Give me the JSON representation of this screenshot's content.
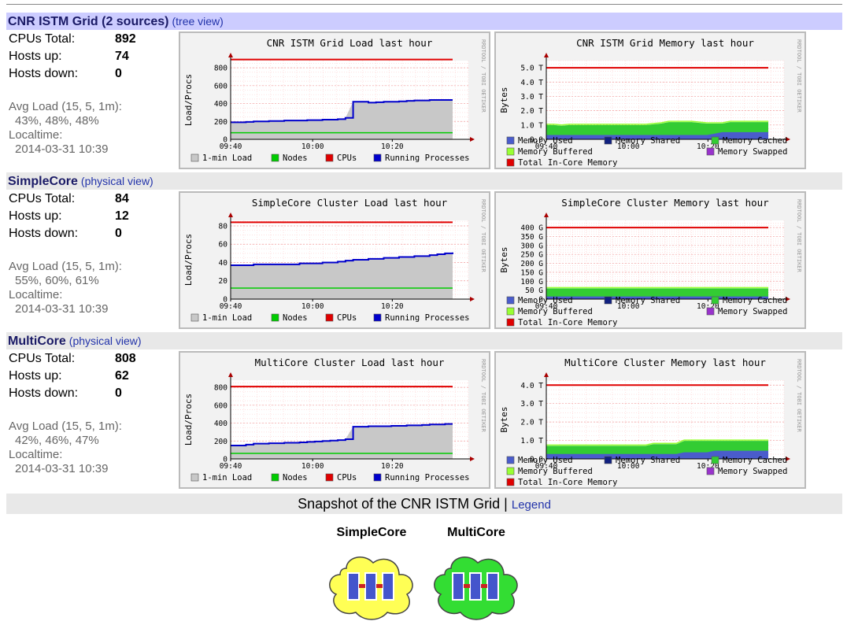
{
  "sections": [
    {
      "title": "CNR ISTM Grid (2 sources)",
      "link": "(tree view)",
      "stats": {
        "cpus_label": "CPUs Total:",
        "cpus_value": "892",
        "up_label": "Hosts up:",
        "up_value": "74",
        "down_label": "Hosts down:",
        "down_value": "0",
        "avg_label": "Avg Load (15, 5, 1m):",
        "avg_value": "43%, 48%, 48%",
        "local_label": "Localtime:",
        "local_value": "2014-03-31 10:39"
      },
      "load_chart": {
        "title": "CNR ISTM Grid Load last hour",
        "ylabel": "Load/Procs",
        "yticks": [
          "0",
          "200",
          "400",
          "600",
          "800"
        ],
        "ymax": 880,
        "cpus": 892,
        "nodes": 74,
        "running": [
          190,
          190,
          195,
          200,
          200,
          205,
          205,
          210,
          210,
          210,
          215,
          215,
          220,
          220,
          225,
          240,
          420,
          420,
          410,
          415,
          420,
          420,
          425,
          430,
          435,
          435,
          440,
          440,
          440,
          440
        ]
      },
      "mem_chart": {
        "title": "CNR ISTM Grid Memory last hour",
        "ylabel": "Bytes",
        "yticks": [
          "0.0",
          "1.0 T",
          "2.0 T",
          "3.0 T",
          "4.0 T",
          "5.0 T"
        ],
        "ymax": 5.5,
        "total": 5.0,
        "used": [
          0.3,
          0.3,
          0.3,
          0.3,
          0.3,
          0.3,
          0.3,
          0.3,
          0.3,
          0.3,
          0.3,
          0.3,
          0.3,
          0.3,
          0.3,
          0.3,
          0.3,
          0.3,
          0.3,
          0.3,
          0.3,
          0.3,
          0.4,
          0.5,
          0.5,
          0.5,
          0.5,
          0.5,
          0.5,
          0.5
        ],
        "cached": [
          0.7,
          0.7,
          0.65,
          0.7,
          0.7,
          0.7,
          0.7,
          0.7,
          0.7,
          0.7,
          0.7,
          0.7,
          0.7,
          0.7,
          0.75,
          0.8,
          0.9,
          0.9,
          0.9,
          0.9,
          0.85,
          0.8,
          0.7,
          0.6,
          0.7,
          0.7,
          0.7,
          0.7,
          0.7,
          0.7
        ]
      }
    },
    {
      "title": "SimpleCore",
      "link": "(physical view)",
      "stats": {
        "cpus_label": "CPUs Total:",
        "cpus_value": "84",
        "up_label": "Hosts up:",
        "up_value": "12",
        "down_label": "Hosts down:",
        "down_value": "0",
        "avg_label": "Avg Load (15, 5, 1m):",
        "avg_value": "55%, 60%, 61%",
        "local_label": "Localtime:",
        "local_value": "2014-03-31 10:39"
      },
      "load_chart": {
        "title": "SimpleCore Cluster Load last hour",
        "ylabel": "Load/Procs",
        "yticks": [
          "0",
          "20",
          "40",
          "60",
          "80"
        ],
        "ymax": 86,
        "cpus": 84,
        "nodes": 12,
        "running": [
          37,
          37,
          37,
          38,
          38,
          38,
          38,
          38,
          38,
          39,
          39,
          39,
          40,
          40,
          41,
          42,
          43,
          43,
          44,
          44,
          45,
          45,
          46,
          46,
          47,
          47,
          48,
          49,
          50,
          51
        ]
      },
      "mem_chart": {
        "title": "SimpleCore Cluster Memory last hour",
        "ylabel": "Bytes",
        "yticks": [
          "0",
          "50 G",
          "100 G",
          "150 G",
          "200 G",
          "250 G",
          "300 G",
          "350 G",
          "400 G"
        ],
        "ymax": 440,
        "total": 400,
        "used": [
          15,
          15,
          15,
          15,
          15,
          15,
          15,
          15,
          15,
          15,
          15,
          15,
          15,
          15,
          15,
          15,
          15,
          15,
          15,
          15,
          15,
          15,
          15,
          15,
          15,
          15,
          15,
          15,
          15,
          15
        ],
        "cached": [
          45,
          45,
          45,
          45,
          45,
          45,
          45,
          45,
          45,
          45,
          45,
          45,
          45,
          45,
          45,
          45,
          45,
          45,
          45,
          45,
          45,
          45,
          45,
          45,
          45,
          45,
          45,
          45,
          45,
          45
        ]
      }
    },
    {
      "title": "MultiCore",
      "link": "(physical view)",
      "stats": {
        "cpus_label": "CPUs Total:",
        "cpus_value": "808",
        "up_label": "Hosts up:",
        "up_value": "62",
        "down_label": "Hosts down:",
        "down_value": "0",
        "avg_label": "Avg Load (15, 5, 1m):",
        "avg_value": "42%, 46%, 47%",
        "local_label": "Localtime:",
        "local_value": "2014-03-31 10:39"
      },
      "load_chart": {
        "title": "MultiCore Cluster Load last hour",
        "ylabel": "Load/Procs",
        "yticks": [
          "0",
          "200",
          "400",
          "600",
          "800"
        ],
        "ymax": 880,
        "cpus": 808,
        "nodes": 62,
        "running": [
          150,
          150,
          160,
          170,
          170,
          175,
          175,
          180,
          180,
          185,
          190,
          195,
          200,
          205,
          210,
          220,
          360,
          360,
          365,
          365,
          365,
          370,
          370,
          375,
          375,
          380,
          385,
          385,
          390,
          390
        ]
      },
      "mem_chart": {
        "title": "MultiCore Cluster Memory last hour",
        "ylabel": "Bytes",
        "yticks": [
          "0.0",
          "1.0 T",
          "2.0 T",
          "3.0 T",
          "4.0 T"
        ],
        "ymax": 4.8,
        "total": 4.5,
        "used": [
          0.3,
          0.3,
          0.3,
          0.3,
          0.3,
          0.3,
          0.3,
          0.3,
          0.3,
          0.3,
          0.3,
          0.3,
          0.3,
          0.3,
          0.3,
          0.3,
          0.3,
          0.3,
          0.4,
          0.4,
          0.4,
          0.4,
          0.5,
          0.5,
          0.5,
          0.5,
          0.5,
          0.5,
          0.5,
          0.5
        ],
        "cached": [
          0.5,
          0.5,
          0.5,
          0.5,
          0.5,
          0.5,
          0.5,
          0.5,
          0.5,
          0.5,
          0.5,
          0.5,
          0.5,
          0.5,
          0.6,
          0.6,
          0.6,
          0.6,
          0.7,
          0.7,
          0.7,
          0.7,
          0.6,
          0.6,
          0.6,
          0.6,
          0.6,
          0.6,
          0.6,
          0.6
        ]
      }
    }
  ],
  "load_legend": [
    "1-min Load",
    "Nodes",
    "CPUs",
    "Running Processes"
  ],
  "mem_legend": [
    "Memory Used",
    "Memory Shared",
    "Memory Cached",
    "Memory Buffered",
    "Memory Swapped",
    "Total In-Core Memory"
  ],
  "xticks": [
    "09:40",
    "10:00",
    "10:20"
  ],
  "watermark": "RRDTOOL / TOBI OETIKER",
  "colors": {
    "load_fill": "#c8c8c8",
    "nodes": "#00cc00",
    "cpus": "#e00000",
    "running": "#0000cc",
    "mem_used": "#4a5ccc",
    "mem_shared": "#102080",
    "mem_cached": "#33cc33",
    "mem_buffered": "#99ff33",
    "mem_swapped": "#9933cc",
    "mem_total": "#e00000",
    "header_bg_primary": "#ccccff",
    "header_bg_secondary": "#e8e8e8",
    "cloud_simple": "#ffff55",
    "cloud_multi": "#33dd33"
  },
  "snapshot": {
    "text": "Snapshot of the CNR ISTM Grid | ",
    "legend_link": "Legend"
  },
  "clusters": [
    {
      "name": "SimpleCore",
      "icon": "cluster-cloud-icon"
    },
    {
      "name": "MultiCore",
      "icon": "cluster-cloud-icon"
    }
  ]
}
